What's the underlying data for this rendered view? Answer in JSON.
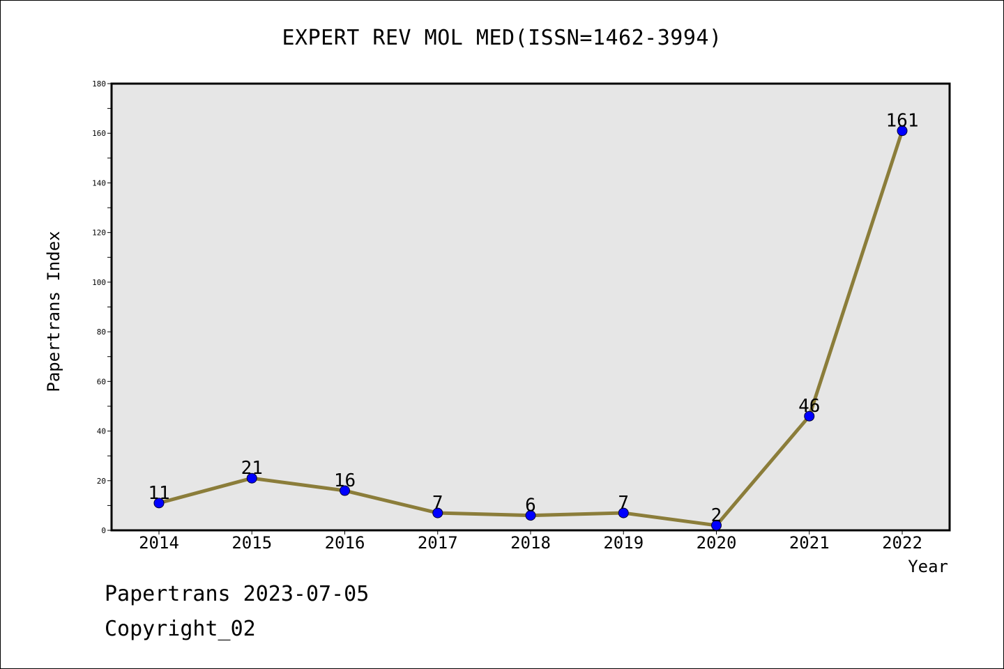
{
  "chart_data": {
    "type": "line",
    "title": "EXPERT REV MOL MED(ISSN=1462-3994)",
    "xlabel": "Year",
    "ylabel": "Papertrans Index",
    "categories": [
      "2014",
      "2015",
      "2016",
      "2017",
      "2018",
      "2019",
      "2020",
      "2021",
      "2022"
    ],
    "series": [
      {
        "values": [
          11,
          21,
          16,
          7,
          6,
          7,
          2,
          46,
          161
        ],
        "data_labels": [
          "11",
          "21",
          "16",
          "7",
          "6",
          "7",
          "2",
          "46",
          "161"
        ]
      }
    ],
    "ylim": [
      0,
      180
    ],
    "yticks": [
      "0",
      "20",
      "40",
      "60",
      "80",
      "100",
      "120",
      "140",
      "160",
      "180"
    ],
    "grid": false,
    "colors": {
      "line": "#8b7d3a",
      "marker": "#0000ff",
      "plot_background": "#e6e6e6"
    }
  },
  "footer": {
    "line1": "Papertrans 2023-07-05",
    "line2": "Copyright_02"
  }
}
